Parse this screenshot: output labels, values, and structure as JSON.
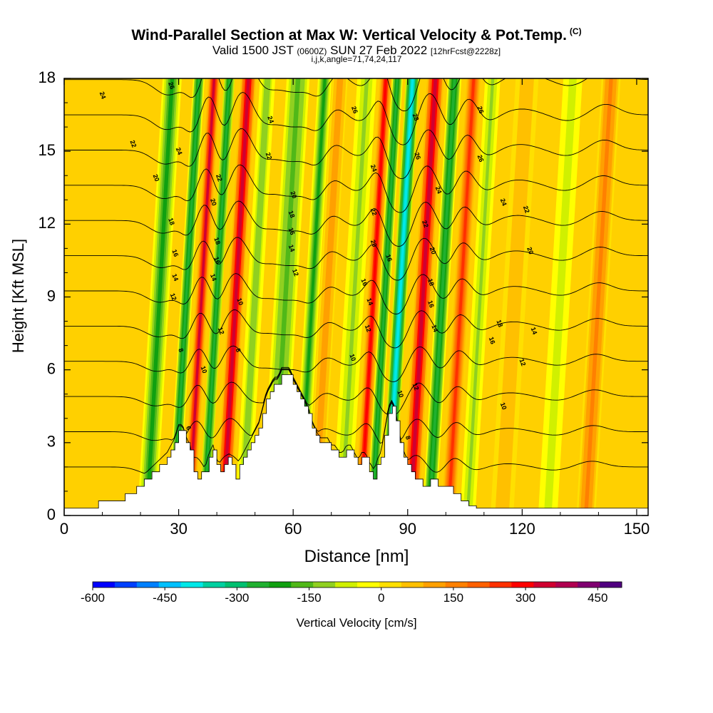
{
  "title": {
    "main": "Wind-Parallel Section at Max W: Vertical Velocity & Pot.Temp.",
    "units": "(C)",
    "valid_pre": "Valid 1500 JST",
    "valid_utc": "(0600Z)",
    "valid_date": "SUN 27 Feb 2022",
    "fcst": "[12hrFcst@2228z]",
    "indices": "i,j,k,angle=71,74,24,117"
  },
  "chart_data": {
    "type": "heatmap",
    "xlabel": "Distance [nm]",
    "ylabel": "Height [Kft MSL]",
    "xlim": [
      0,
      153
    ],
    "ylim": [
      0,
      18
    ],
    "xticks": [
      0,
      30,
      60,
      90,
      120,
      150
    ],
    "yticks": [
      0,
      3,
      6,
      9,
      12,
      15,
      18
    ],
    "colorbar": {
      "label": "Vertical Velocity [cm/s]",
      "range": [
        -600,
        500
      ],
      "ticks": [
        -600,
        -450,
        -300,
        -150,
        0,
        150,
        300,
        450
      ],
      "colors": [
        "#0000ff",
        "#0040ff",
        "#0080ff",
        "#00c0ff",
        "#00e8e8",
        "#00d0a0",
        "#00c070",
        "#20b030",
        "#10a010",
        "#50b818",
        "#90d020",
        "#d0f000",
        "#ffff00",
        "#ffe000",
        "#ffc000",
        "#ffa000",
        "#ff8000",
        "#ff6000",
        "#ff3000",
        "#ff0000",
        "#d00030",
        "#b00050",
        "#800070",
        "#500080"
      ]
    },
    "vertical_velocity_bands": [
      {
        "x": 25,
        "width": 2.5,
        "w": -250
      },
      {
        "x": 32,
        "width": 1.5,
        "w": -300
      },
      {
        "x": 36,
        "width": 1.6,
        "w": 380
      },
      {
        "x": 40,
        "width": 1.4,
        "w": -320
      },
      {
        "x": 45,
        "width": 2.0,
        "w": 420
      },
      {
        "x": 50,
        "width": 2.0,
        "w": -150
      },
      {
        "x": 58,
        "width": 3.0,
        "w": -200
      },
      {
        "x": 65,
        "width": 1.8,
        "w": -250
      },
      {
        "x": 69,
        "width": 2.0,
        "w": 150
      },
      {
        "x": 76,
        "width": 2.5,
        "w": -120
      },
      {
        "x": 81,
        "width": 1.6,
        "w": 350
      },
      {
        "x": 84,
        "width": 1.4,
        "w": -300
      },
      {
        "x": 88,
        "width": 1.8,
        "w": -500
      },
      {
        "x": 94,
        "width": 2.2,
        "w": 420
      },
      {
        "x": 99,
        "width": 1.8,
        "w": -300
      },
      {
        "x": 104,
        "width": 1.8,
        "w": 320
      },
      {
        "x": 109,
        "width": 2.0,
        "w": -120
      },
      {
        "x": 118,
        "width": 3.0,
        "w": 100
      },
      {
        "x": 130,
        "width": 2.5,
        "w": -100
      },
      {
        "x": 140,
        "width": 2.5,
        "w": 180
      }
    ],
    "terrain": {
      "x": [
        0,
        9,
        12,
        16,
        19,
        21,
        23,
        25,
        27,
        28,
        29,
        30,
        31,
        32,
        33,
        34,
        35,
        36,
        37,
        38,
        39,
        40,
        41,
        42,
        43,
        44,
        45,
        46,
        47,
        48,
        49,
        50,
        51,
        52,
        53,
        54,
        55,
        56,
        57,
        58,
        59,
        60,
        61,
        62,
        63,
        64,
        65,
        66,
        67,
        68,
        69,
        70,
        71,
        72,
        73,
        74,
        75,
        76,
        77,
        78,
        79,
        80,
        81,
        82,
        83,
        84,
        85,
        86,
        87,
        88,
        89,
        90,
        91,
        92,
        93,
        94,
        95,
        96,
        97,
        98,
        99,
        100,
        101,
        102,
        103,
        104,
        105,
        106,
        107,
        108,
        110,
        153
      ],
      "y": [
        0.3,
        0.6,
        0.6,
        0.9,
        1.2,
        1.5,
        1.8,
        2.1,
        2.4,
        2.7,
        3.0,
        3.5,
        3.5,
        3.0,
        2.7,
        1.8,
        1.5,
        1.8,
        1.8,
        2.4,
        2.7,
        2.1,
        1.8,
        2.1,
        2.4,
        2.1,
        1.5,
        2.1,
        2.4,
        2.7,
        3.0,
        3.3,
        3.6,
        4.2,
        4.8,
        5.1,
        5.4,
        5.4,
        5.8,
        5.8,
        5.8,
        5.4,
        5.1,
        4.8,
        4.5,
        4.2,
        3.6,
        3.3,
        3.0,
        3.0,
        3.0,
        2.7,
        2.7,
        2.4,
        2.4,
        2.7,
        2.7,
        2.4,
        2.1,
        2.4,
        2.4,
        1.8,
        1.5,
        2.1,
        2.4,
        3.3,
        4.2,
        4.5,
        3.9,
        3.0,
        2.4,
        2.1,
        1.8,
        1.5,
        1.5,
        1.2,
        1.2,
        1.5,
        1.5,
        1.2,
        1.2,
        1.2,
        1.2,
        0.9,
        0.9,
        0.6,
        0.6,
        0.4,
        0.4,
        0.3,
        0.3,
        0.3
      ]
    },
    "theta_levels": [
      6,
      8,
      10,
      12,
      14,
      16,
      18,
      20,
      22,
      24,
      26,
      28
    ],
    "contour_labels": [
      {
        "x": 10,
        "y": 17.3,
        "text": "24"
      },
      {
        "x": 18,
        "y": 15.3,
        "text": "22"
      },
      {
        "x": 24,
        "y": 13.9,
        "text": "20"
      },
      {
        "x": 28,
        "y": 17.7,
        "text": "26"
      },
      {
        "x": 30,
        "y": 15.0,
        "text": "24"
      },
      {
        "x": 28,
        "y": 12.1,
        "text": "18"
      },
      {
        "x": 29,
        "y": 10.8,
        "text": "16"
      },
      {
        "x": 29,
        "y": 9.8,
        "text": "14"
      },
      {
        "x": 28.5,
        "y": 9.0,
        "text": "12"
      },
      {
        "x": 30.5,
        "y": 6.8,
        "text": "8"
      },
      {
        "x": 32.5,
        "y": 3.6,
        "text": "6"
      },
      {
        "x": 36.5,
        "y": 6.0,
        "text": "10"
      },
      {
        "x": 39,
        "y": 12.9,
        "text": "20"
      },
      {
        "x": 40.5,
        "y": 13.9,
        "text": "22"
      },
      {
        "x": 40,
        "y": 11.3,
        "text": "18"
      },
      {
        "x": 40,
        "y": 10.5,
        "text": "16"
      },
      {
        "x": 39,
        "y": 9.8,
        "text": "14"
      },
      {
        "x": 41,
        "y": 7.6,
        "text": "12"
      },
      {
        "x": 46,
        "y": 8.8,
        "text": "10"
      },
      {
        "x": 45.5,
        "y": 6.8,
        "text": "8"
      },
      {
        "x": 54,
        "y": 16.3,
        "text": "24"
      },
      {
        "x": 53.5,
        "y": 14.8,
        "text": "22"
      },
      {
        "x": 60,
        "y": 13.2,
        "text": "20"
      },
      {
        "x": 59.5,
        "y": 12.4,
        "text": "18"
      },
      {
        "x": 59.5,
        "y": 11.7,
        "text": "16"
      },
      {
        "x": 59.5,
        "y": 11.0,
        "text": "14"
      },
      {
        "x": 60.5,
        "y": 10.0,
        "text": "12"
      },
      {
        "x": 75.5,
        "y": 6.5,
        "text": "10"
      },
      {
        "x": 76,
        "y": 16.7,
        "text": "26"
      },
      {
        "x": 81,
        "y": 14.3,
        "text": "24"
      },
      {
        "x": 81,
        "y": 12.5,
        "text": "22"
      },
      {
        "x": 81,
        "y": 11.2,
        "text": "20"
      },
      {
        "x": 78.5,
        "y": 9.6,
        "text": "16"
      },
      {
        "x": 80,
        "y": 8.8,
        "text": "14"
      },
      {
        "x": 79.5,
        "y": 7.7,
        "text": "12"
      },
      {
        "x": 85,
        "y": 10.6,
        "text": "16"
      },
      {
        "x": 92,
        "y": 16.4,
        "text": "28"
      },
      {
        "x": 92.5,
        "y": 14.8,
        "text": "26"
      },
      {
        "x": 98,
        "y": 13.4,
        "text": "24"
      },
      {
        "x": 94.5,
        "y": 12.0,
        "text": "22"
      },
      {
        "x": 96.5,
        "y": 10.9,
        "text": "20"
      },
      {
        "x": 96,
        "y": 9.6,
        "text": "18"
      },
      {
        "x": 96,
        "y": 8.7,
        "text": "16"
      },
      {
        "x": 97,
        "y": 7.7,
        "text": "14"
      },
      {
        "x": 92,
        "y": 5.3,
        "text": "12"
      },
      {
        "x": 88,
        "y": 5.0,
        "text": "10"
      },
      {
        "x": 90,
        "y": 3.2,
        "text": "8"
      },
      {
        "x": 109,
        "y": 16.7,
        "text": "26"
      },
      {
        "x": 109,
        "y": 14.7,
        "text": "26"
      },
      {
        "x": 115,
        "y": 12.9,
        "text": "24"
      },
      {
        "x": 121,
        "y": 12.6,
        "text": "22"
      },
      {
        "x": 122,
        "y": 10.9,
        "text": "20"
      },
      {
        "x": 114,
        "y": 7.9,
        "text": "18"
      },
      {
        "x": 112,
        "y": 7.2,
        "text": "16"
      },
      {
        "x": 123,
        "y": 7.6,
        "text": "14"
      },
      {
        "x": 120,
        "y": 6.3,
        "text": "12"
      },
      {
        "x": 115,
        "y": 4.5,
        "text": "10"
      }
    ]
  }
}
